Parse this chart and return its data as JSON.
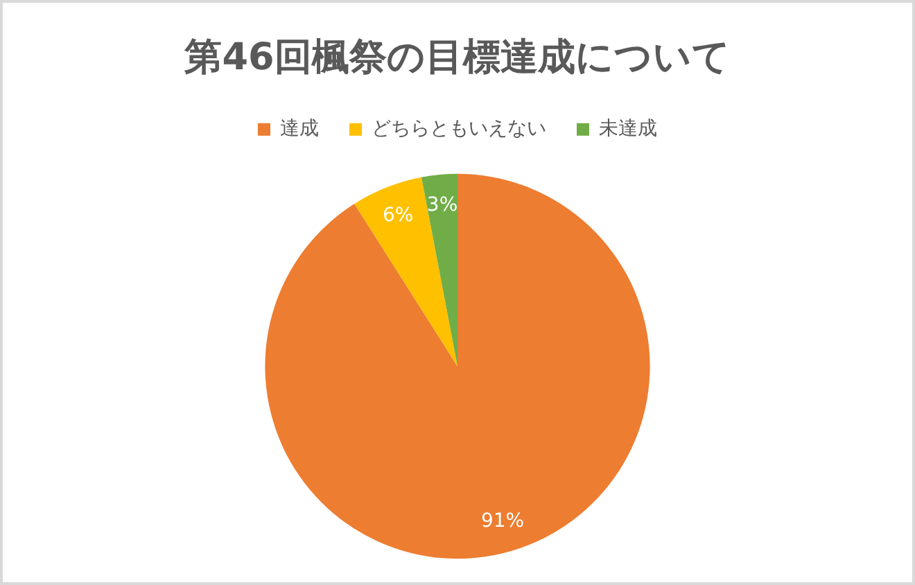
{
  "chart_data": {
    "type": "pie",
    "title": "第46回楓祭の目標達成について",
    "categories": [
      "達成",
      "どちらともいえない",
      "未達成"
    ],
    "values": [
      91,
      6,
      3
    ],
    "colors": [
      "#ed7d31",
      "#ffc000",
      "#70ad47"
    ],
    "value_labels": [
      "91%",
      "6%",
      "3%"
    ],
    "legend": "top"
  }
}
